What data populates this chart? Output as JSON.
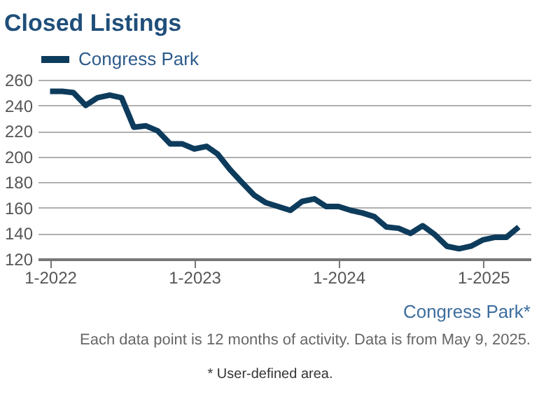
{
  "chart_data": {
    "type": "line",
    "title": "Closed Listings",
    "x": [
      "2022-01",
      "2022-02",
      "2022-03",
      "2022-04",
      "2022-05",
      "2022-06",
      "2022-07",
      "2022-08",
      "2022-09",
      "2022-10",
      "2022-11",
      "2022-12",
      "2023-01",
      "2023-02",
      "2023-03",
      "2023-04",
      "2023-05",
      "2023-06",
      "2023-07",
      "2023-08",
      "2023-09",
      "2023-10",
      "2023-11",
      "2023-12",
      "2024-01",
      "2024-02",
      "2024-03",
      "2024-04",
      "2024-05",
      "2024-06",
      "2024-07",
      "2024-08",
      "2024-09",
      "2024-10",
      "2024-11",
      "2024-12",
      "2025-01",
      "2025-02",
      "2025-03",
      "2025-04"
    ],
    "series": [
      {
        "name": "Congress Park",
        "color": "#0d3b5c",
        "values": [
          251,
          251,
          250,
          240,
          246,
          248,
          246,
          223,
          224,
          220,
          210,
          210,
          206,
          208,
          202,
          190,
          180,
          170,
          164,
          161,
          158,
          165,
          167,
          161,
          161,
          158,
          156,
          153,
          145,
          144,
          140,
          146,
          139,
          130,
          128,
          130,
          135,
          137,
          137,
          145
        ]
      }
    ],
    "xlim": [
      "2021-12",
      "2025-05"
    ],
    "xticks": [
      {
        "value": "2022-01",
        "label": "1-2022"
      },
      {
        "value": "2023-01",
        "label": "1-2023"
      },
      {
        "value": "2024-01",
        "label": "1-2024"
      },
      {
        "value": "2025-01",
        "label": "1-2025"
      }
    ],
    "ylim": [
      120,
      260
    ],
    "yticks": [
      120,
      140,
      160,
      180,
      200,
      220,
      240,
      260
    ],
    "grid": "y",
    "legend": "top",
    "line_style": "solid",
    "marker": "none",
    "annotations": [
      "Congress Park*",
      "Each data point is 12 months of activity. Data is from May 9, 2025.",
      "* User-defined area."
    ]
  }
}
